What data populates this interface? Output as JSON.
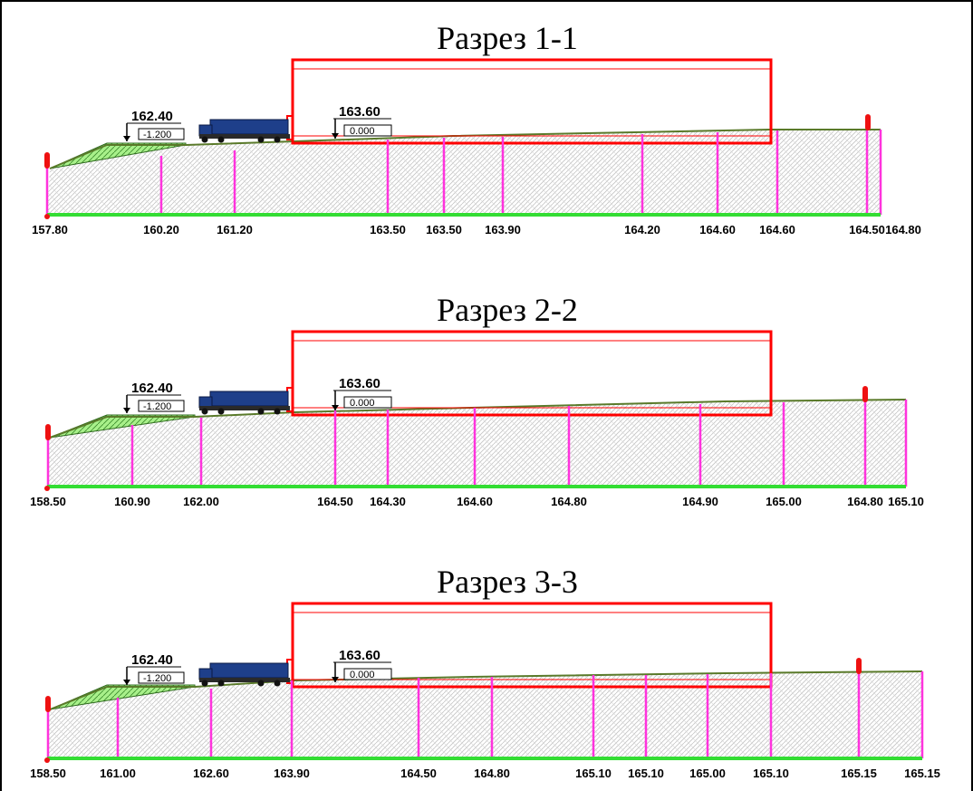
{
  "colors": {
    "building": "#ff0000",
    "ground_line": "#5a7a2a",
    "base_line": "#33dd33",
    "piles": "#ff33dd",
    "marker": "#ee1111",
    "fill": "#99ee77",
    "truck": "#1e3f8a"
  },
  "sections": [
    {
      "title": "Разрез 1-1",
      "mark_left": {
        "top": "162.40",
        "box": "-1.200"
      },
      "mark_right": {
        "top": "163.60",
        "box": "0.000"
      },
      "elevations": [
        "157.80",
        "160.20",
        "161.20",
        "163.50",
        "163.50",
        "163.90",
        "164.20",
        "164.60",
        "164.60",
        "164.50",
        "164.80"
      ]
    },
    {
      "title": "Разрез 2-2",
      "mark_left": {
        "top": "162.40",
        "box": "-1.200"
      },
      "mark_right": {
        "top": "163.60",
        "box": "0.000"
      },
      "elevations": [
        "158.50",
        "160.90",
        "162.00",
        "164.50",
        "164.30",
        "164.60",
        "164.80",
        "164.90",
        "165.00",
        "164.80",
        "165.10"
      ]
    },
    {
      "title": "Разрез 3-3",
      "mark_left": {
        "top": "162.40",
        "box": "-1.200"
      },
      "mark_right": {
        "top": "163.60",
        "box": "0.000"
      },
      "elevations": [
        "158.50",
        "161.00",
        "162.60",
        "163.90",
        "164.50",
        "164.80",
        "165.10",
        "165.10",
        "165.00",
        "165.10",
        "165.15",
        "165.15"
      ]
    }
  ]
}
